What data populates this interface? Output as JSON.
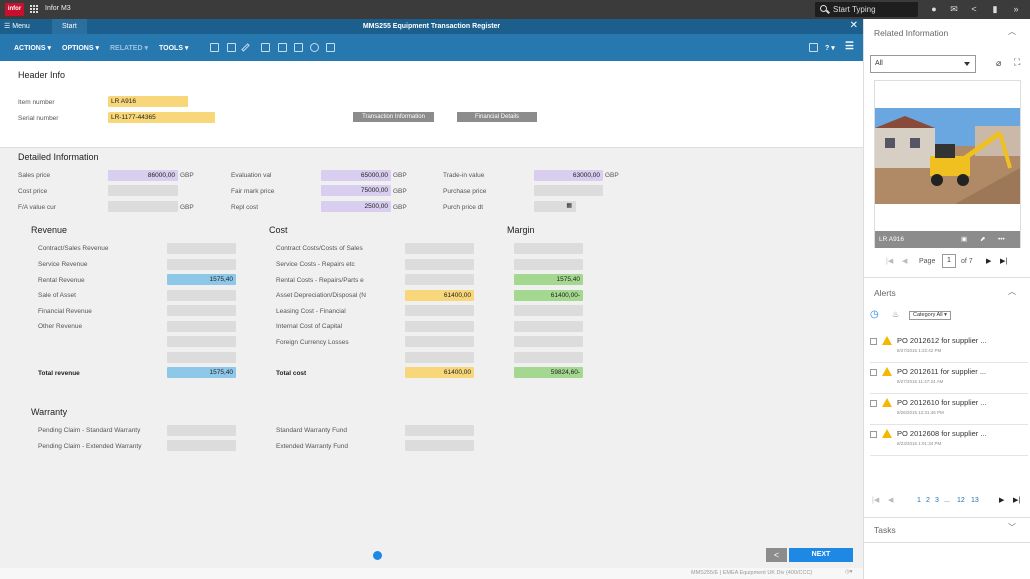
{
  "topbar": {
    "logo": "infor",
    "app": "Infor M3",
    "search_placeholder": "Start Typing"
  },
  "header": {
    "menu": "Menu",
    "start_tab": "Start",
    "program_title": "MMS255 Equipment Transaction Register"
  },
  "toolbar": {
    "actions": "ACTIONS ▾",
    "options": "OPTIONS ▾",
    "related": "RELATED ▾",
    "tools": "TOOLS ▾",
    "help": "? ▾"
  },
  "header_info": {
    "title": "Header Info",
    "item_number_label": "Item number",
    "item_number": "LR A916",
    "serial_label": "Serial number",
    "serial": "LR-1177-44365",
    "btn_transaction": "Transaction Information",
    "btn_financial": "Financial Details"
  },
  "detailed": {
    "title": "Detailed Information",
    "sales_price_label": "Sales price",
    "sales_price": "86000,00",
    "cost_price_label": "Cost price",
    "fa_label": "F/A value cur",
    "eval_label": "Evaluation val",
    "eval": "65000,00",
    "fair_label": "Fair mark price",
    "fair": "75000,00",
    "repl_label": "Repl cost",
    "repl": "2500,00",
    "trade_label": "Trade-in value",
    "trade": "63000,00",
    "purchase_label": "Purchase price",
    "purchase_dt_label": "Purch price dt",
    "currency": "GBP"
  },
  "revenue": {
    "title": "Revenue",
    "items": [
      "Contract/Sales Revenue",
      "Service Revenue",
      "Rental Revenue",
      "Sale of Asset",
      "Financial Revenue",
      "Other Revenue"
    ],
    "rental": "1575,40",
    "total_label": "Total revenue",
    "total": "1575,40"
  },
  "cost": {
    "title": "Cost",
    "items": [
      "Contract Costs/Costs of Sales",
      "Service Costs - Repairs etc",
      "Rental Costs - Repairs/Parts e",
      "Asset Depreciation/Disposal (N",
      "Leasing Cost - Financial",
      "Internal Cost of Capital",
      "Foreign Currency Losses"
    ],
    "depreciation": "61400,00",
    "total_label": "Total cost",
    "total": "61400,00"
  },
  "margin": {
    "title": "Margin",
    "rental": "1575,40",
    "depreciation": "61400,00-",
    "total": "59824,60-"
  },
  "warranty": {
    "title": "Warranty",
    "pending_std": "Pending Claim - Standard Warranty",
    "pending_ext": "Pending Claim - Extended Warranty",
    "std_fund": "Standard Warranty Fund",
    "ext_fund": "Extended Warranty Fund"
  },
  "footer": {
    "prev": "<",
    "next": "NEXT",
    "status": "MMS255/E  |  EMEA Equipment UK Div (400/CCC)"
  },
  "related": {
    "title": "Related Information",
    "filter": "All",
    "image_caption": "LR A916",
    "page_label": "Page",
    "page": "1",
    "of_label": "of 7"
  },
  "alerts": {
    "title": "Alerts",
    "category": "Category All ▾",
    "items": [
      {
        "text": "PO 2012612 for supplier ...",
        "date": "8/27/2015 1:22:42 PM"
      },
      {
        "text": "PO 2012611 for supplier ...",
        "date": "8/27/2015 11:47:24 AM"
      },
      {
        "text": "PO 2012610 for supplier ...",
        "date": "8/26/2015 12:31:46 PM"
      },
      {
        "text": "PO 2012608 for supplier ...",
        "date": "8/23/2015 1:01:34 PM"
      }
    ],
    "pages": [
      "1",
      "2",
      "3",
      "...",
      "12",
      "13"
    ]
  },
  "tasks": {
    "title": "Tasks"
  }
}
